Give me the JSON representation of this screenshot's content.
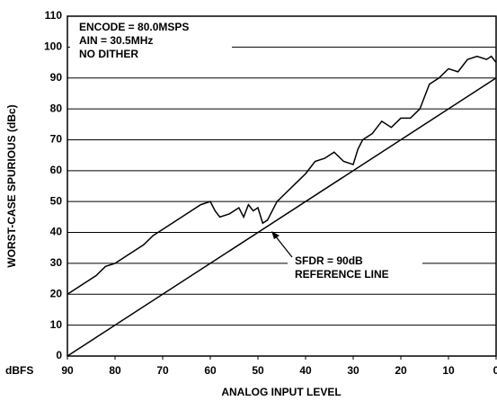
{
  "chart_data": {
    "type": "line",
    "ylabel": "WORST-CASE SPURIOUS (dBc)",
    "xlabel": "ANALOG INPUT LEVEL",
    "x_unit_label": "dBFS",
    "annotations": [
      "ENCODE = 80.0MSPS",
      "AIN = 30.5MHz",
      "NO DITHER",
      "SFDR = 90dB",
      "REFERENCE LINE"
    ],
    "xlim": [
      90,
      0
    ],
    "xticks": [
      90,
      80,
      70,
      60,
      50,
      40,
      30,
      20,
      10,
      0
    ],
    "ylim": [
      0,
      110
    ],
    "yticks": [
      0,
      10,
      20,
      30,
      40,
      50,
      60,
      70,
      80,
      90,
      100,
      110
    ],
    "grid": true,
    "series": [
      {
        "color": "#000000",
        "x": [
          90,
          88,
          86,
          84,
          82,
          80,
          78,
          76,
          74,
          72,
          70,
          68,
          66,
          64,
          62,
          60,
          59,
          58,
          56,
          54,
          53,
          52,
          51,
          50,
          49,
          48,
          46,
          44,
          42,
          40,
          38,
          36,
          34,
          32,
          30,
          29,
          28,
          26,
          24,
          22,
          20,
          18,
          16,
          14,
          12,
          10,
          8,
          6,
          4,
          2,
          1,
          0
        ],
        "values": [
          20,
          22,
          24,
          26,
          29,
          30,
          32,
          34,
          36,
          39,
          41,
          43,
          45,
          47,
          49,
          50,
          47,
          45,
          46,
          48,
          45,
          49,
          47,
          48,
          43,
          44,
          50,
          53,
          56,
          59,
          63,
          64,
          66,
          63,
          62,
          67,
          70,
          72,
          76,
          74,
          77,
          77,
          80,
          88,
          90,
          93,
          92,
          96,
          97,
          96,
          97,
          95
        ]
      },
      {
        "color": "#000000",
        "x": [
          90,
          0
        ],
        "values": [
          0,
          90
        ]
      }
    ]
  }
}
